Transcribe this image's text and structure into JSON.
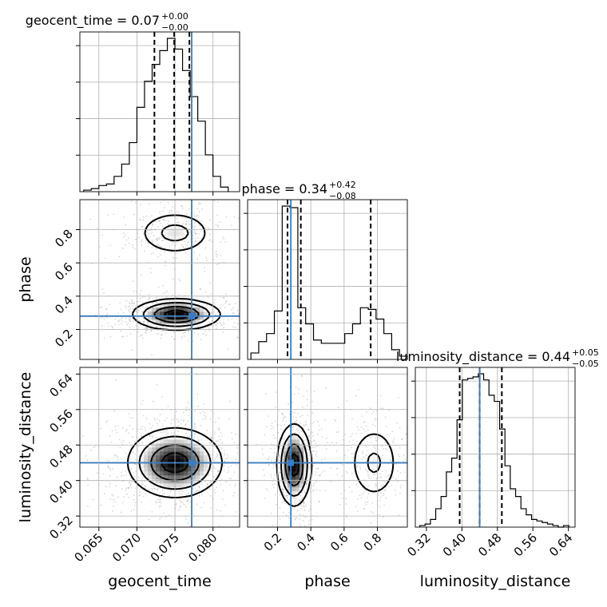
{
  "chart_data": {
    "type": "corner",
    "parameters": [
      "geocent_time",
      "phase",
      "luminosity_distance"
    ],
    "titles": [
      {
        "parameter": "geocent_time",
        "text": "geocent_time = 0.07",
        "plus": "+0.00",
        "minus": "−0.00"
      },
      {
        "parameter": "phase",
        "text": "phase = 0.34",
        "plus": "+0.42",
        "minus": "−0.08"
      },
      {
        "parameter": "luminosity_distance",
        "text": "luminosity_distance = 0.44",
        "plus": "+0.05",
        "minus": "−0.05"
      }
    ],
    "ranges": {
      "geocent_time": [
        0.0625,
        0.0835
      ],
      "phase": [
        0.02,
        0.98
      ],
      "luminosity_distance": [
        0.295,
        0.655
      ]
    },
    "ticks": {
      "geocent_time": {
        "values": [
          0.065,
          0.07,
          0.075,
          0.08
        ],
        "labels": [
          "0.065",
          "0.070",
          "0.075",
          "0.080"
        ]
      },
      "phase": {
        "values": [
          0.2,
          0.4,
          0.6,
          0.8
        ],
        "labels": [
          "0.2",
          "0.4",
          "0.6",
          "0.8"
        ]
      },
      "luminosity_distance": {
        "values": [
          0.32,
          0.4,
          0.48,
          0.56,
          0.64
        ],
        "labels": [
          "0.32",
          "0.40",
          "0.48",
          "0.56",
          "0.64"
        ]
      }
    },
    "truths": {
      "geocent_time": 0.0772,
      "phase": 0.28,
      "luminosity_distance": 0.44
    },
    "quantiles": {
      "geocent_time": [
        0.0723,
        0.0749,
        0.0769
      ],
      "phase": [
        0.26,
        0.34,
        0.76
      ],
      "luminosity_distance": [
        0.395,
        0.44,
        0.49
      ]
    },
    "histograms": {
      "geocent_time": {
        "edges": [
          0.063,
          0.064,
          0.065,
          0.066,
          0.067,
          0.068,
          0.069,
          0.07,
          0.071,
          0.072,
          0.073,
          0.074,
          0.075,
          0.076,
          0.077,
          0.078,
          0.079,
          0.08,
          0.081,
          0.082
        ],
        "counts": [
          1,
          2,
          4,
          5,
          10,
          18,
          32,
          55,
          72,
          83,
          92,
          100,
          93,
          79,
          62,
          46,
          24,
          10,
          3
        ]
      },
      "phase": {
        "edges": [
          0.04,
          0.087,
          0.134,
          0.181,
          0.228,
          0.275,
          0.322,
          0.369,
          0.416,
          0.463,
          0.51,
          0.557,
          0.604,
          0.651,
          0.698,
          0.745,
          0.792,
          0.839,
          0.886,
          0.933,
          0.98
        ],
        "counts": [
          4,
          11,
          16,
          30,
          95,
          94,
          32,
          22,
          12,
          10,
          10,
          10,
          16,
          22,
          32,
          31,
          25,
          16,
          6,
          2
        ]
      },
      "luminosity_distance": {
        "edges": [
          0.305,
          0.317,
          0.329,
          0.341,
          0.353,
          0.365,
          0.377,
          0.389,
          0.401,
          0.413,
          0.425,
          0.437,
          0.449,
          0.461,
          0.473,
          0.485,
          0.497,
          0.509,
          0.521,
          0.533,
          0.545,
          0.557,
          0.569,
          0.581,
          0.593,
          0.605,
          0.617,
          0.629,
          0.641
        ],
        "counts": [
          1,
          2,
          5,
          12,
          20,
          36,
          45,
          70,
          96,
          97,
          98,
          100,
          96,
          86,
          82,
          64,
          40,
          25,
          20,
          12,
          8,
          5,
          4,
          3,
          2,
          1,
          0,
          1
        ]
      }
    },
    "density2d": {
      "phase_vs_geocent_time": {
        "x": "geocent_time",
        "y": "phase",
        "modes": [
          {
            "x": 0.0752,
            "y": 0.29,
            "sx": 0.0028,
            "sy": 0.045,
            "w": 0.65
          },
          {
            "x": 0.075,
            "y": 0.78,
            "sx": 0.0026,
            "sy": 0.07,
            "w": 0.35
          }
        ]
      },
      "luminosity_distance_vs_geocent_time": {
        "x": "geocent_time",
        "y": "luminosity_distance",
        "modes": [
          {
            "x": 0.075,
            "y": 0.44,
            "sx": 0.003,
            "sy": 0.038,
            "w": 1.0
          }
        ]
      },
      "luminosity_distance_vs_phase": {
        "x": "phase",
        "y": "luminosity_distance",
        "modes": [
          {
            "x": 0.3,
            "y": 0.435,
            "sx": 0.05,
            "sy": 0.045,
            "w": 0.65
          },
          {
            "x": 0.78,
            "y": 0.44,
            "sx": 0.08,
            "sy": 0.045,
            "w": 0.35
          }
        ]
      }
    },
    "axis_labels": {
      "x": [
        "geocent_time",
        "phase",
        "luminosity_distance"
      ],
      "y": [
        "phase",
        "luminosity_distance"
      ]
    },
    "colors": {
      "truth": "#3b7bbf",
      "contour": "#000000",
      "samples": "#8c8c8c",
      "grid": "#b0b0b0"
    },
    "grid": true
  }
}
